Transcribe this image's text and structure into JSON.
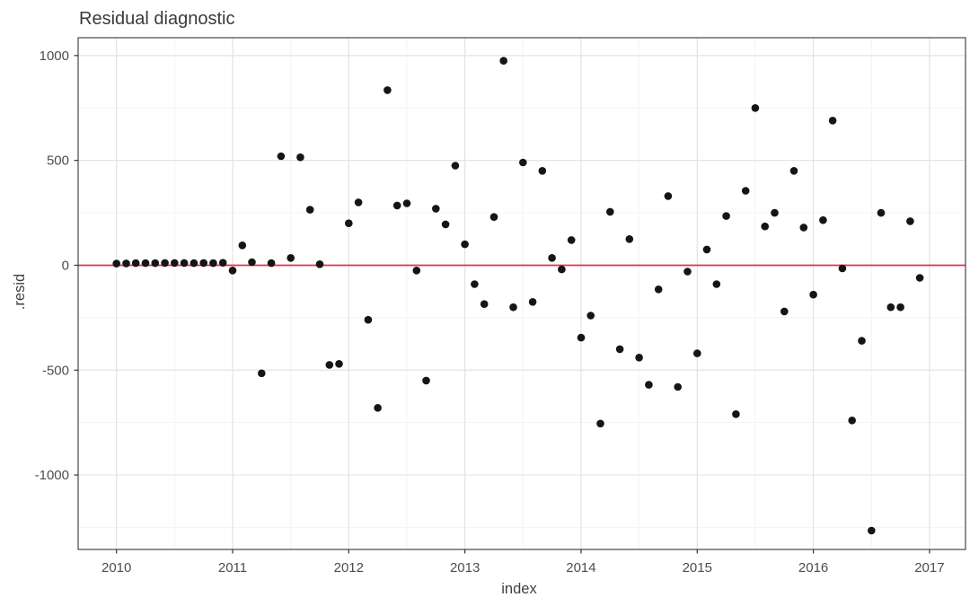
{
  "chart_data": {
    "type": "scatter",
    "title": "Residual diagnostic",
    "xlabel": "index",
    "ylabel": ".resid",
    "legend": "none",
    "grid": "on",
    "start_year": 2010,
    "frequency": "monthly",
    "x_ticks": [
      2010,
      2011,
      2012,
      2013,
      2014,
      2015,
      2016,
      2017
    ],
    "x_minor_ticks": [
      2010.5,
      2011.5,
      2012.5,
      2013.5,
      2014.5,
      2015.5,
      2016.5
    ],
    "y_ticks": [
      -1000,
      -500,
      0,
      500,
      1000
    ],
    "y_minor_ticks": [
      -1250,
      -750,
      -250,
      250,
      750
    ],
    "xlim": [
      2009.67,
      2017.31
    ],
    "ylim": [
      -1355,
      1085
    ],
    "zero_line": 0,
    "series": [
      {
        "name": ".resid",
        "values": [
          8,
          9,
          10,
          10,
          10,
          11,
          11,
          11,
          10,
          11,
          10,
          12,
          -25,
          95,
          15,
          -515,
          10,
          520,
          35,
          515,
          265,
          5,
          -475,
          -470,
          200,
          300,
          -260,
          -680,
          835,
          285,
          295,
          -25,
          -550,
          270,
          195,
          475,
          100,
          -90,
          -185,
          230,
          975,
          -200,
          490,
          -175,
          450,
          35,
          -20,
          120,
          -345,
          -240,
          -755,
          255,
          -400,
          125,
          -440,
          -570,
          -115,
          330,
          -580,
          -30,
          -420,
          75,
          -90,
          235,
          -710,
          355,
          750,
          185,
          250,
          -220,
          450,
          180,
          -140,
          215,
          690,
          -15,
          -740,
          -360,
          -1265,
          250,
          -200,
          -200,
          210,
          -60
        ]
      }
    ],
    "colors": {
      "point": "#151515",
      "zero_line": "#ED2D50",
      "grid_major": "#e3e3e3",
      "grid_minor": "#f3f3f3",
      "panel_border": "#474747",
      "panel_bg": "#ffffff",
      "tick_mark": "#333333"
    },
    "point_radius": 4.3
  }
}
